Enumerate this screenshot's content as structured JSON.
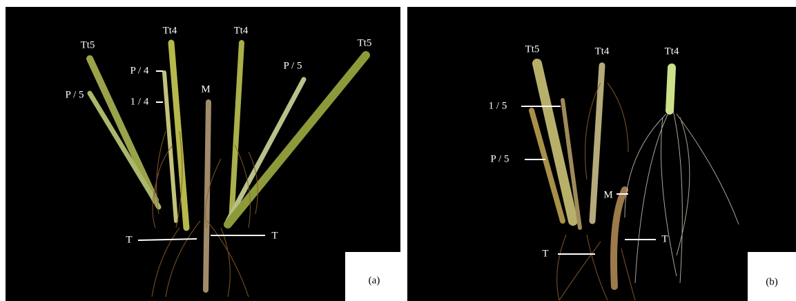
{
  "panels": [
    {
      "caption": "(a)",
      "labels": [
        "Tt5",
        "Tt4",
        "Tt4",
        "Tt5",
        "P / 4",
        "1 / 4",
        "M",
        "P / 5",
        "P / 5",
        "T",
        "T"
      ]
    },
    {
      "caption": "(b)",
      "labels": [
        "Tt5",
        "Tt4",
        "Tt4",
        "1 / 5",
        "P / 5",
        "M",
        "T",
        "T"
      ]
    }
  ]
}
